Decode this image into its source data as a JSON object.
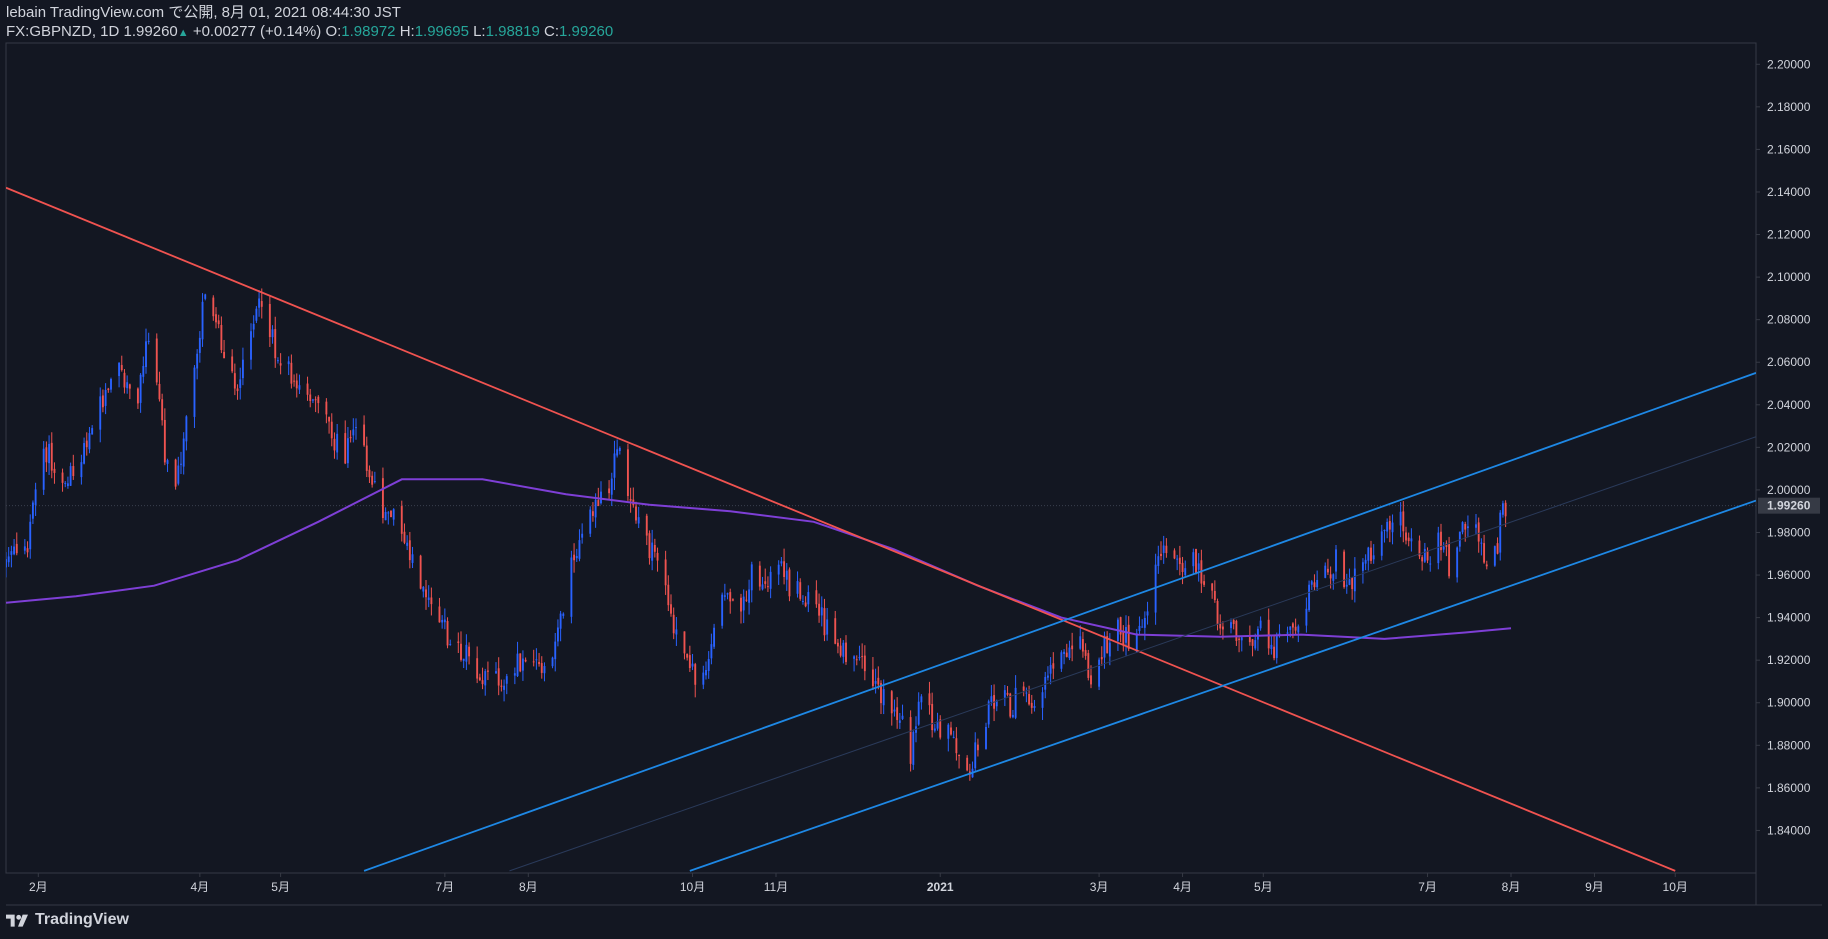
{
  "header": {
    "publish_line": "lebain TradingView.com で公開, 8月 01, 2021 08:44:30 JST",
    "symbol": "FX:GBPNZD, 1D",
    "last": "1.99260",
    "up_glyph": "▲",
    "change": "+0.00277 (+0.14%)",
    "o_label": "O:",
    "o_value": "1.98972",
    "h_label": "H:",
    "h_value": "1.99695",
    "l_label": "L:",
    "l_value": "1.98819",
    "c_label": "C:",
    "c_value": "1.99260"
  },
  "footer": {
    "brand": "TradingView",
    "logo_icon": "tradingview-logo-icon"
  },
  "colors": {
    "background": "#131722",
    "up": "#2962ff",
    "down": "#ef5350",
    "resistance_line": "#f05350",
    "channel_lines": "#1e88e5",
    "moving_average": "#7e3fd6",
    "axis_text": "#d1d4dc",
    "border": "#363a45"
  },
  "chart_data": {
    "type": "candlestick",
    "title": "",
    "ylim": [
      1.82,
      2.21
    ],
    "xlim": [
      "2020-01-20",
      "2021-10-31"
    ],
    "y_ticks": [
      "1.84000",
      "1.86000",
      "1.88000",
      "1.90000",
      "1.92000",
      "1.94000",
      "1.96000",
      "1.98000",
      "2.00000",
      "2.02000",
      "2.04000",
      "2.06000",
      "2.08000",
      "2.10000",
      "2.12000",
      "2.14000",
      "2.16000",
      "2.18000",
      "2.20000"
    ],
    "last_price_label": "1.99260",
    "x_ticks": [
      {
        "label": "2月",
        "date": "2020-02-01"
      },
      {
        "label": "4月",
        "date": "2020-04-01"
      },
      {
        "label": "5月",
        "date": "2020-05-01"
      },
      {
        "label": "7月",
        "date": "2020-07-01"
      },
      {
        "label": "8月",
        "date": "2020-08-01"
      },
      {
        "label": "10月",
        "date": "2020-10-01"
      },
      {
        "label": "11月",
        "date": "2020-11-01"
      },
      {
        "label": "2021",
        "date": "2021-01-01",
        "bold": true
      },
      {
        "label": "3月",
        "date": "2021-03-01"
      },
      {
        "label": "4月",
        "date": "2021-04-01"
      },
      {
        "label": "5月",
        "date": "2021-05-01"
      },
      {
        "label": "7月",
        "date": "2021-07-01"
      },
      {
        "label": "8月",
        "date": "2021-08-01"
      },
      {
        "label": "9月",
        "date": "2021-09-01"
      },
      {
        "label": "10月",
        "date": "2021-10-01"
      }
    ],
    "anchors": [
      [
        "2020-01-20",
        1.965
      ],
      [
        "2020-01-28",
        1.975
      ],
      [
        "2020-02-03",
        2.02
      ],
      [
        "2020-02-10",
        2.005
      ],
      [
        "2020-02-17",
        2.015
      ],
      [
        "2020-02-24",
        2.04
      ],
      [
        "2020-03-02",
        2.055
      ],
      [
        "2020-03-09",
        2.045
      ],
      [
        "2020-03-12",
        2.07
      ],
      [
        "2020-03-16",
        2.055
      ],
      [
        "2020-03-19",
        2.015
      ],
      [
        "2020-03-23",
        2.0
      ],
      [
        "2020-03-27",
        2.03
      ],
      [
        "2020-04-01",
        2.075
      ],
      [
        "2020-04-03",
        2.095
      ],
      [
        "2020-04-06",
        2.085
      ],
      [
        "2020-04-10",
        2.06
      ],
      [
        "2020-04-15",
        2.05
      ],
      [
        "2020-04-20",
        2.08
      ],
      [
        "2020-04-24",
        2.09
      ],
      [
        "2020-04-28",
        2.07
      ],
      [
        "2020-05-04",
        2.055
      ],
      [
        "2020-05-11",
        2.045
      ],
      [
        "2020-05-18",
        2.03
      ],
      [
        "2020-05-25",
        2.015
      ],
      [
        "2020-05-29",
        2.035
      ],
      [
        "2020-06-03",
        2.005
      ],
      [
        "2020-06-08",
        1.99
      ],
      [
        "2020-06-12",
        1.985
      ],
      [
        "2020-06-17",
        1.975
      ],
      [
        "2020-06-22",
        1.955
      ],
      [
        "2020-06-26",
        1.945
      ],
      [
        "2020-06-30",
        1.935
      ],
      [
        "2020-07-07",
        1.925
      ],
      [
        "2020-07-13",
        1.915
      ],
      [
        "2020-07-20",
        1.91
      ],
      [
        "2020-07-27",
        1.918
      ],
      [
        "2020-08-03",
        1.92
      ],
      [
        "2020-08-07",
        1.912
      ],
      [
        "2020-08-12",
        1.935
      ],
      [
        "2020-08-17",
        1.965
      ],
      [
        "2020-08-21",
        1.98
      ],
      [
        "2020-08-26",
        1.99
      ],
      [
        "2020-08-31",
        2.0
      ],
      [
        "2020-09-03",
        2.02
      ],
      [
        "2020-09-07",
        1.995
      ],
      [
        "2020-09-11",
        1.985
      ],
      [
        "2020-09-16",
        1.97
      ],
      [
        "2020-09-21",
        1.955
      ],
      [
        "2020-09-25",
        1.93
      ],
      [
        "2020-09-30",
        1.915
      ],
      [
        "2020-10-05",
        1.91
      ],
      [
        "2020-10-09",
        1.93
      ],
      [
        "2020-10-14",
        1.955
      ],
      [
        "2020-10-19",
        1.948
      ],
      [
        "2020-10-23",
        1.96
      ],
      [
        "2020-10-28",
        1.95
      ],
      [
        "2020-11-02",
        1.965
      ],
      [
        "2020-11-06",
        1.955
      ],
      [
        "2020-11-11",
        1.95
      ],
      [
        "2020-11-16",
        1.945
      ],
      [
        "2020-11-20",
        1.935
      ],
      [
        "2020-11-25",
        1.925
      ],
      [
        "2020-11-30",
        1.918
      ],
      [
        "2020-12-04",
        1.915
      ],
      [
        "2020-12-09",
        1.905
      ],
      [
        "2020-12-14",
        1.895
      ],
      [
        "2020-12-18",
        1.89
      ],
      [
        "2020-12-21",
        1.872
      ],
      [
        "2020-12-24",
        1.9
      ],
      [
        "2020-12-29",
        1.892
      ],
      [
        "2021-01-04",
        1.885
      ],
      [
        "2021-01-08",
        1.88
      ],
      [
        "2021-01-12",
        1.87
      ],
      [
        "2021-01-18",
        1.892
      ],
      [
        "2021-01-22",
        1.905
      ],
      [
        "2021-01-27",
        1.898
      ],
      [
        "2021-02-01",
        1.908
      ],
      [
        "2021-02-05",
        1.9
      ],
      [
        "2021-02-10",
        1.912
      ],
      [
        "2021-02-15",
        1.92
      ],
      [
        "2021-02-19",
        1.93
      ],
      [
        "2021-02-24",
        1.925
      ],
      [
        "2021-02-26",
        1.905
      ],
      [
        "2021-03-02",
        1.925
      ],
      [
        "2021-03-08",
        1.935
      ],
      [
        "2021-03-12",
        1.93
      ],
      [
        "2021-03-17",
        1.94
      ],
      [
        "2021-03-22",
        1.96
      ],
      [
        "2021-03-26",
        1.972
      ],
      [
        "2021-03-31",
        1.968
      ],
      [
        "2021-04-05",
        1.965
      ],
      [
        "2021-04-09",
        1.958
      ],
      [
        "2021-04-13",
        1.945
      ],
      [
        "2021-04-16",
        1.938
      ],
      [
        "2021-04-21",
        1.93
      ],
      [
        "2021-04-26",
        1.925
      ],
      [
        "2021-04-30",
        1.935
      ],
      [
        "2021-05-05",
        1.925
      ],
      [
        "2021-05-10",
        1.93
      ],
      [
        "2021-05-14",
        1.94
      ],
      [
        "2021-05-19",
        1.955
      ],
      [
        "2021-05-24",
        1.96
      ],
      [
        "2021-05-28",
        1.968
      ],
      [
        "2021-06-02",
        1.955
      ],
      [
        "2021-06-07",
        1.962
      ],
      [
        "2021-06-11",
        1.975
      ],
      [
        "2021-06-16",
        1.985
      ],
      [
        "2021-06-21",
        1.99
      ],
      [
        "2021-06-25",
        1.972
      ],
      [
        "2021-06-30",
        1.968
      ],
      [
        "2021-07-05",
        1.975
      ],
      [
        "2021-07-09",
        1.965
      ],
      [
        "2021-07-14",
        1.985
      ],
      [
        "2021-07-19",
        1.978
      ],
      [
        "2021-07-23",
        1.968
      ],
      [
        "2021-07-27",
        1.975
      ],
      [
        "2021-07-29",
        1.995
      ],
      [
        "2021-07-30",
        1.9926
      ]
    ],
    "moving_average": [
      [
        "2020-01-20",
        1.947
      ],
      [
        "2020-02-15",
        1.95
      ],
      [
        "2020-03-15",
        1.955
      ],
      [
        "2020-04-15",
        1.967
      ],
      [
        "2020-05-15",
        1.985
      ],
      [
        "2020-06-15",
        2.005
      ],
      [
        "2020-07-15",
        2.005
      ],
      [
        "2020-08-15",
        1.998
      ],
      [
        "2020-09-15",
        1.993
      ],
      [
        "2020-10-15",
        1.99
      ],
      [
        "2020-11-15",
        1.985
      ],
      [
        "2020-12-15",
        1.972
      ],
      [
        "2021-01-15",
        1.955
      ],
      [
        "2021-02-15",
        1.94
      ],
      [
        "2021-03-15",
        1.932
      ],
      [
        "2021-04-15",
        1.931
      ],
      [
        "2021-05-15",
        1.932
      ],
      [
        "2021-06-15",
        1.93
      ],
      [
        "2021-07-15",
        1.933
      ],
      [
        "2021-08-01",
        1.935
      ]
    ],
    "trend_lines": [
      {
        "name": "resistance-line",
        "color": "#f05350",
        "points": [
          [
            "2020-01-20",
            2.142
          ],
          [
            "2021-10-01",
            1.821
          ]
        ]
      },
      {
        "name": "channel-upper-line",
        "color": "#1e88e5",
        "points": [
          [
            "2020-06-01",
            1.821
          ],
          [
            "2021-10-31",
            2.055
          ]
        ]
      },
      {
        "name": "channel-lower-line",
        "color": "#1e88e5",
        "points": [
          [
            "2020-09-30",
            1.821
          ],
          [
            "2021-10-31",
            1.995
          ]
        ]
      },
      {
        "name": "channel-mid-line",
        "color": "#2a3a5a",
        "points": [
          [
            "2020-07-25",
            1.821
          ],
          [
            "2021-10-31",
            2.025
          ]
        ]
      }
    ]
  }
}
